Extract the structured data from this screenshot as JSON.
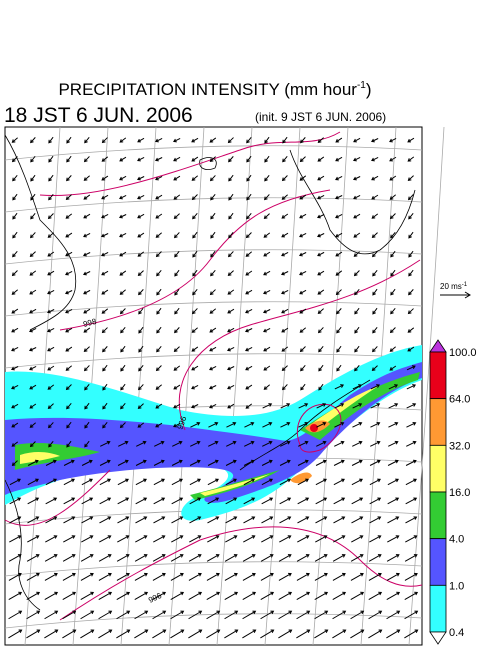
{
  "header": {
    "title": "PRECIPITATION INTENSITY (mm hour",
    "title_sup": "-1",
    "title_end": ")",
    "valid_time": "18 JST 6 JUN. 2006",
    "init_time": "(init. 9 JST 6 JUN. 2006)"
  },
  "wind_reference": {
    "label": "20 ms",
    "label_sup": "-1"
  },
  "colorbar": {
    "levels": [
      "100.0",
      "64.0",
      "32.0",
      "16.0",
      "4.0",
      "1.0",
      "0.4"
    ],
    "colors": [
      "#e8001a",
      "#ff9933",
      "#ffff66",
      "#33cc33",
      "#5555ff",
      "#33ffff"
    ],
    "over_color": "#bb33dd",
    "under_color": "#ffffff"
  },
  "contour_labels": [
    "998",
    "996",
    "996"
  ]
}
